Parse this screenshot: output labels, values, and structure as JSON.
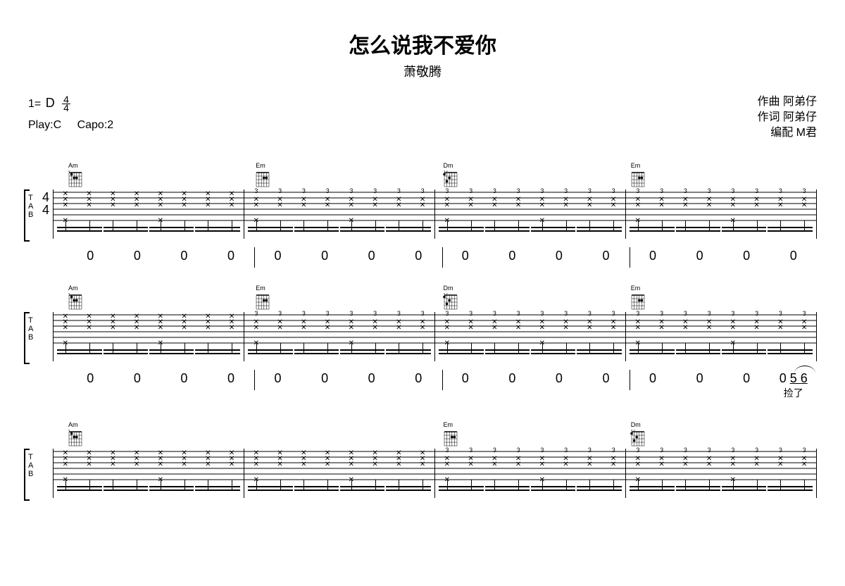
{
  "title": "怎么说我不爱你",
  "artist": "萧敬腾",
  "key_info": {
    "key_label": "1=",
    "key": "D",
    "time_sig_num": "4",
    "time_sig_den": "4",
    "play_label": "Play:C",
    "capo_label": "Capo:2"
  },
  "credits": {
    "composer_label": "作曲",
    "composer": "阿弟仔",
    "lyricist_label": "作词",
    "lyricist": "阿弟仔",
    "arranger_label": "编配",
    "arranger": "M君"
  },
  "tab_label": {
    "t": "T",
    "a": "A",
    "b": "B"
  },
  "chords": {
    "Am": "Am",
    "Em": "Em",
    "Dm": "Dm"
  },
  "systems": [
    {
      "chords": [
        "Am",
        "Em",
        "Dm",
        "Em"
      ],
      "show_timesig": true,
      "numbers": [
        [
          "0",
          "0",
          "0",
          "0"
        ],
        [
          "0",
          "0",
          "0",
          "0"
        ],
        [
          "0",
          "0",
          "0",
          "0"
        ],
        [
          "0",
          "0",
          "0",
          "0"
        ]
      ],
      "fret_num": "3",
      "lyrics": [
        [
          "",
          "",
          "",
          ""
        ],
        [
          "",
          "",
          "",
          ""
        ],
        [
          "",
          "",
          "",
          ""
        ],
        [
          "",
          "",
          "",
          ""
        ]
      ]
    },
    {
      "chords": [
        "Am",
        "Em",
        "Dm",
        "Em"
      ],
      "show_timesig": false,
      "numbers": [
        [
          "0",
          "0",
          "0",
          "0"
        ],
        [
          "0",
          "0",
          "0",
          "0"
        ],
        [
          "0",
          "0",
          "0",
          "0"
        ],
        [
          "0",
          "0",
          "0",
          "0 5 6"
        ]
      ],
      "fret_num": "3",
      "last_underlined": true,
      "has_tie": true,
      "lyrics": [
        [
          "",
          "",
          "",
          ""
        ],
        [
          "",
          "",
          "",
          ""
        ],
        [
          "",
          "",
          "",
          ""
        ],
        [
          "",
          "",
          "",
          "捡了"
        ]
      ]
    },
    {
      "chords": [
        "Am",
        "",
        "Em",
        "Dm"
      ],
      "show_timesig": false,
      "partial": true,
      "numbers": [],
      "fret_num": "3",
      "lyrics": []
    }
  ],
  "x_symbol": "✕"
}
